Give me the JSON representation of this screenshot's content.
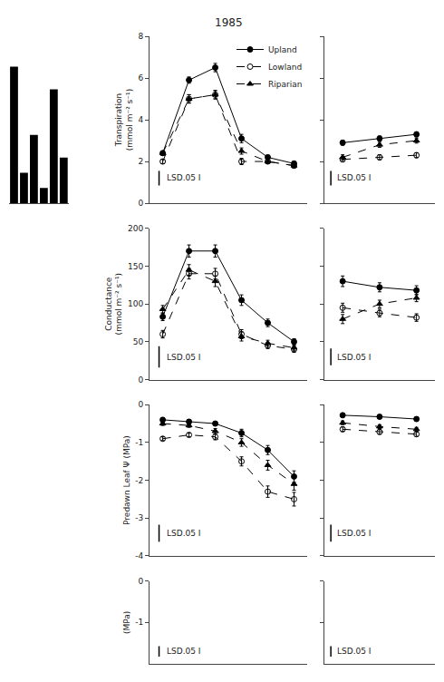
{
  "chart_data": [
    {
      "type": "bar",
      "categories": [
        null,
        null,
        null,
        null,
        null,
        null
      ],
      "values": [
        1.8,
        0.4,
        0.9,
        0.2,
        1.5,
        0.6
      ],
      "color": "black",
      "ylim": [
        0,
        2.2
      ],
      "grid": false,
      "tick_labels": false
    },
    {
      "type": "line",
      "title": "1985",
      "categories": [
        null,
        null,
        null,
        null,
        null,
        null
      ],
      "series": [
        {
          "name": "Upland",
          "color": "black",
          "marker": "circle",
          "line_style": "solid",
          "values": [
            2.4,
            5.9,
            6.5,
            3.1,
            2.2,
            1.9
          ],
          "error": [
            0.1,
            0.15,
            0.2,
            0.2,
            0.1,
            0.1
          ]
        },
        {
          "name": "Lowland",
          "color": "black",
          "marker": "circle-open",
          "line_style": "dash",
          "values": [
            2.0,
            5.0,
            5.2,
            2.0,
            2.0,
            1.8
          ],
          "error": [
            0.1,
            0.2,
            0.2,
            0.15,
            0.1,
            0.1
          ]
        },
        {
          "name": "Riparian",
          "color": "black",
          "marker": "triangle-up",
          "line_style": "dash",
          "values": [
            2.4,
            5.0,
            5.2,
            2.5,
            2.0,
            1.8
          ],
          "error": [
            0.1,
            0.2,
            0.2,
            0.15,
            0.1,
            0.1
          ]
        }
      ],
      "ylim": [
        0,
        8
      ],
      "yticks": [
        0,
        2,
        4,
        6,
        8
      ],
      "ylabel": "Transpiration\n(mmol m⁻² s⁻¹)",
      "annotations": [
        "LSD.05 I"
      ],
      "lsd": 0.7,
      "grid": false,
      "legend": "upper right",
      "tick_labels": "y"
    },
    {
      "type": "line",
      "categories": [
        null,
        null,
        null,
        null,
        null,
        null
      ],
      "series": [
        {
          "name": "Upland",
          "color": "black",
          "marker": "circle",
          "line_style": "solid",
          "values": [
            83,
            170,
            170,
            105,
            75,
            50
          ],
          "error": [
            5,
            8,
            8,
            7,
            5,
            4
          ]
        },
        {
          "name": "Lowland",
          "color": "black",
          "marker": "circle-open",
          "line_style": "dash",
          "values": [
            60,
            140,
            140,
            60,
            45,
            40
          ],
          "error": [
            5,
            7,
            7,
            6,
            4,
            4
          ]
        },
        {
          "name": "Riparian",
          "color": "black",
          "marker": "triangle-up",
          "line_style": "dash",
          "values": [
            93,
            145,
            130,
            57,
            48,
            42
          ],
          "error": [
            5,
            7,
            7,
            6,
            4,
            4
          ]
        }
      ],
      "ylim": [
        0,
        200
      ],
      "yticks": [
        0,
        50,
        100,
        150,
        200
      ],
      "ylabel": "Conductance\n(mmol m⁻² s⁻¹)",
      "annotations": [
        "LSD.05 I"
      ],
      "lsd": 28,
      "grid": false,
      "tick_labels": "y"
    },
    {
      "type": "line",
      "categories": [
        null,
        null,
        null,
        null,
        null,
        null
      ],
      "series": [
        {
          "name": "Upland",
          "color": "black",
          "marker": "circle",
          "line_style": "solid",
          "values": [
            -0.4,
            -0.45,
            -0.5,
            -0.75,
            -1.2,
            -1.9
          ],
          "error": [
            0.05,
            0.05,
            0.05,
            0.1,
            0.12,
            0.15
          ]
        },
        {
          "name": "Lowland",
          "color": "black",
          "marker": "circle-open",
          "line_style": "dash",
          "values": [
            -0.9,
            -0.8,
            -0.85,
            -1.5,
            -2.3,
            -2.5
          ],
          "error": [
            0.05,
            0.05,
            0.08,
            0.12,
            0.15,
            0.18
          ]
        },
        {
          "name": "Riparian",
          "color": "black",
          "marker": "triangle-up",
          "line_style": "dash",
          "values": [
            -0.5,
            -0.55,
            -0.7,
            -1.0,
            -1.6,
            -2.1
          ],
          "error": [
            0.05,
            0.05,
            0.07,
            0.1,
            0.13,
            0.16
          ]
        }
      ],
      "ylim": [
        -4,
        0
      ],
      "yticks": [
        0,
        -1,
        -2,
        -3,
        -4
      ],
      "ylabel": "Predawn Leaf Ψ (MPa)",
      "annotations": [
        "LSD.05 I"
      ],
      "lsd": 0.45,
      "grid": false,
      "tick_labels": "y"
    },
    {
      "type": "line",
      "categories": [
        null,
        null,
        null,
        null,
        null,
        null
      ],
      "series": [],
      "ylim": [
        -2,
        0
      ],
      "yticks": [
        0,
        -1
      ],
      "ylabel": "(MPa)",
      "annotations": [
        "LSD.05 I"
      ],
      "lsd": 0.25,
      "grid": false,
      "tick_labels": "y"
    },
    {
      "type": "line",
      "categories": [
        null,
        null,
        null
      ],
      "series": [
        {
          "name": "Upland",
          "color": "black",
          "marker": "circle",
          "line_style": "solid",
          "values": [
            2.9,
            3.1,
            3.3
          ],
          "error": [
            0.12,
            0.12,
            0.12
          ]
        },
        {
          "name": "Lowland",
          "color": "black",
          "marker": "circle-open",
          "line_style": "dash",
          "values": [
            2.1,
            2.2,
            2.3
          ],
          "error": [
            0.12,
            0.12,
            0.12
          ]
        },
        {
          "name": "Riparian",
          "color": "black",
          "marker": "triangle-up",
          "line_style": "dash",
          "values": [
            2.2,
            2.8,
            3.0
          ],
          "error": [
            0.12,
            0.12,
            0.12
          ]
        }
      ],
      "ylim": [
        0,
        8
      ],
      "yticks": [
        0,
        2,
        4,
        6,
        8
      ],
      "annotations": [
        "LSD.05 I"
      ],
      "lsd": 0.7,
      "grid": false,
      "tick_labels": false
    },
    {
      "type": "line",
      "categories": [
        null,
        null,
        null
      ],
      "series": [
        {
          "name": "Upland",
          "color": "black",
          "marker": "circle",
          "line_style": "solid",
          "values": [
            130,
            122,
            118
          ],
          "error": [
            7,
            6,
            6
          ]
        },
        {
          "name": "Lowland",
          "color": "black",
          "marker": "circle-open",
          "line_style": "dash",
          "values": [
            95,
            88,
            82
          ],
          "error": [
            6,
            5,
            5
          ]
        },
        {
          "name": "Riparian",
          "color": "black",
          "marker": "triangle-up",
          "line_style": "dash",
          "values": [
            80,
            100,
            108
          ],
          "error": [
            6,
            5,
            5
          ]
        }
      ],
      "ylim": [
        0,
        200
      ],
      "yticks": [
        0,
        50,
        100,
        150,
        200
      ],
      "annotations": [
        "LSD.05 I"
      ],
      "lsd": 22,
      "grid": false,
      "tick_labels": false
    },
    {
      "type": "line",
      "categories": [
        null,
        null,
        null
      ],
      "series": [
        {
          "name": "Upland",
          "color": "black",
          "marker": "circle",
          "line_style": "solid",
          "values": [
            -0.28,
            -0.32,
            -0.38
          ],
          "error": [
            0.05,
            0.05,
            0.05
          ]
        },
        {
          "name": "Lowland",
          "color": "black",
          "marker": "circle-open",
          "line_style": "dash",
          "values": [
            -0.65,
            -0.72,
            -0.78
          ],
          "error": [
            0.06,
            0.06,
            0.06
          ]
        },
        {
          "name": "Riparian",
          "color": "black",
          "marker": "triangle-up",
          "line_style": "dash",
          "values": [
            -0.48,
            -0.58,
            -0.65
          ],
          "error": [
            0.05,
            0.05,
            0.05
          ]
        }
      ],
      "ylim": [
        -4,
        0
      ],
      "yticks": [
        0,
        -1,
        -2,
        -3,
        -4
      ],
      "annotations": [
        "LSD.05 I"
      ],
      "lsd": 0.45,
      "grid": false,
      "tick_labels": false
    },
    {
      "type": "line",
      "categories": [
        null,
        null,
        null
      ],
      "series": [],
      "ylim": [
        -2,
        0
      ],
      "yticks": [
        0,
        -1
      ],
      "annotations": [
        "LSD.05 I"
      ],
      "lsd": 0.25,
      "grid": false,
      "tick_labels": false
    }
  ]
}
